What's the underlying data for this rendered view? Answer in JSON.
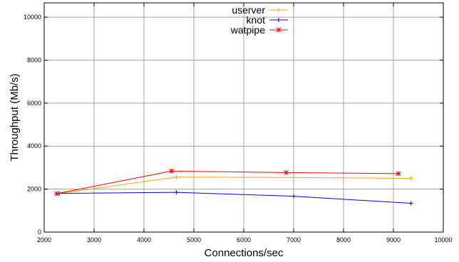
{
  "chart_data": {
    "type": "line",
    "xlabel": "Connections/sec",
    "ylabel": "Throughput (Mb/s)",
    "xlim": [
      2000,
      10000
    ],
    "ylim": [
      0,
      10666
    ],
    "xticks": [
      2000,
      3000,
      4000,
      5000,
      6000,
      7000,
      8000,
      9000,
      10000
    ],
    "yticks": [
      0,
      2000,
      4000,
      6000,
      8000,
      10000
    ],
    "grid": true,
    "legend_position": "top-center",
    "series": [
      {
        "name": "userver",
        "color": "#ffa500",
        "marker": "plus",
        "points": [
          [
            2300,
            1800
          ],
          [
            4650,
            2560
          ],
          [
            7000,
            2540
          ],
          [
            9350,
            2500
          ]
        ]
      },
      {
        "name": "knot",
        "color": "#0000ff",
        "marker": "plus",
        "points": [
          [
            2300,
            1800
          ],
          [
            4650,
            1850
          ],
          [
            7000,
            1670
          ],
          [
            9350,
            1340
          ]
        ]
      },
      {
        "name": "watpipe",
        "color": "#ff0000",
        "marker": "star",
        "points": [
          [
            2250,
            1790
          ],
          [
            4550,
            2840
          ],
          [
            6850,
            2770
          ],
          [
            9100,
            2720
          ]
        ]
      }
    ]
  }
}
